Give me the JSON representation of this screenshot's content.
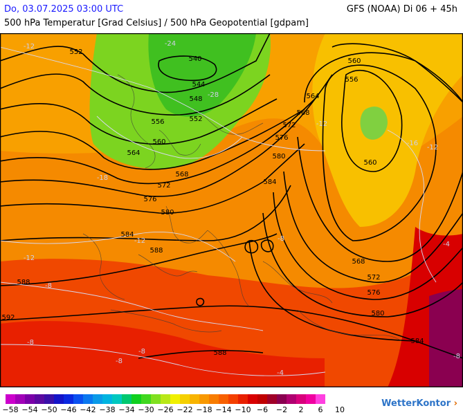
{
  "header": {
    "datetime": "Do, 03.07.2025 03:00 UTC",
    "model": "GFS (NOAA) Di 06 + 45h",
    "subtitle": "500 hPa Temperatur [Grad Celsius] / 500 hPa Geopotential [gdpam]"
  },
  "map": {
    "geopotential_labels": [
      "552",
      "540",
      "544",
      "548",
      "556",
      "552",
      "560",
      "564",
      "568",
      "572",
      "576",
      "580",
      "584",
      "588",
      "588",
      "592",
      "560",
      "556",
      "564",
      "568",
      "572",
      "576",
      "580",
      "584",
      "560",
      "568",
      "572",
      "576",
      "580",
      "584",
      "588"
    ],
    "temperature_labels": [
      "-12",
      "-24",
      "-28",
      "-12",
      "-18",
      "-12",
      "-16",
      "-12",
      "-12",
      "-8",
      "-8",
      "-8",
      "-8",
      "-8",
      "-4",
      "-4",
      "-8"
    ]
  },
  "legend": {
    "colors": [
      "#cc00cc",
      "#a100b8",
      "#7a00a8",
      "#5a0aa0",
      "#3a10a8",
      "#1414c8",
      "#0a28e0",
      "#0a50f0",
      "#0a78f0",
      "#0a9ae8",
      "#00b4e0",
      "#00c8c0",
      "#00c870",
      "#10d020",
      "#40d820",
      "#80e020",
      "#b8e818",
      "#f0f000",
      "#f5d000",
      "#f8b400",
      "#f89800",
      "#f87c00",
      "#f86000",
      "#f44000",
      "#e82000",
      "#d80000",
      "#c00000",
      "#a00028",
      "#8a0050",
      "#b00070",
      "#d8007c",
      "#f000a0",
      "#ff40e0"
    ],
    "ticks": [
      "−58",
      "−54",
      "−50",
      "−46",
      "−42",
      "−38",
      "−34",
      "−30",
      "−26",
      "−22",
      "−18",
      "−14",
      "−10",
      "−6",
      "−2",
      "2",
      "6",
      "10"
    ],
    "brand": "WetterKontor"
  }
}
